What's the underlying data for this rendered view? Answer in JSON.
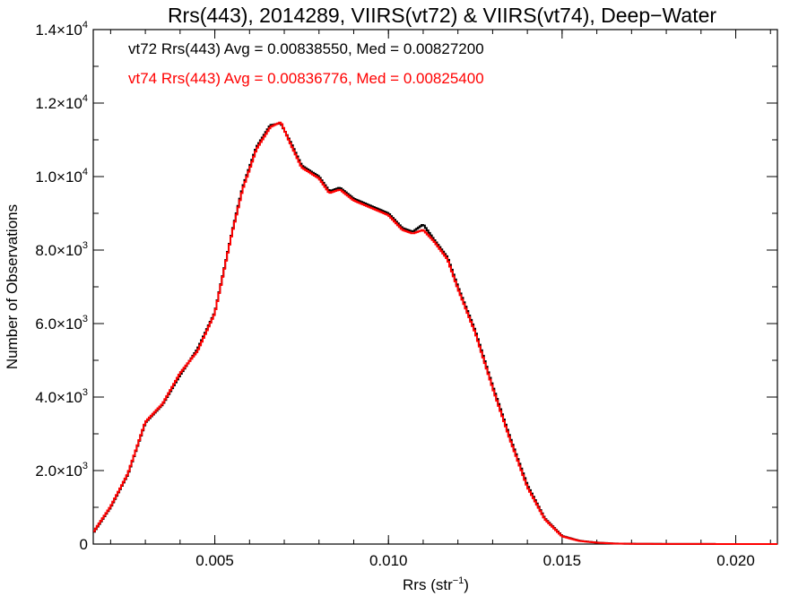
{
  "chart_data": {
    "type": "line",
    "step": true,
    "title": "Rrs(443), 2014289, VIIRS(vt72) & VIIRS(vt74), Deep−Water",
    "xlabel": "Rrs (str",
    "xlabel_sup": "−1",
    "xlabel_suffix": ")",
    "ylabel": "Number of Observations",
    "xlim": [
      0.0015,
      0.0212
    ],
    "ylim": [
      0,
      14000
    ],
    "x_ticks": [
      {
        "value": 0.005,
        "label": "0.005"
      },
      {
        "value": 0.01,
        "label": "0.010"
      },
      {
        "value": 0.015,
        "label": "0.015"
      },
      {
        "value": 0.02,
        "label": "0.020"
      }
    ],
    "y_ticks": [
      {
        "value": 0,
        "mant": "0",
        "exp": ""
      },
      {
        "value": 2000,
        "mant": "2.0×10",
        "exp": "3"
      },
      {
        "value": 4000,
        "mant": "4.0×10",
        "exp": "3"
      },
      {
        "value": 6000,
        "mant": "6.0×10",
        "exp": "3"
      },
      {
        "value": 8000,
        "mant": "8.0×10",
        "exp": "3"
      },
      {
        "value": 10000,
        "mant": "1.0×10",
        "exp": "4"
      },
      {
        "value": 12000,
        "mant": "1.2×10",
        "exp": "4"
      },
      {
        "value": 14000,
        "mant": "1.4×10",
        "exp": "4"
      }
    ],
    "x_minor_step": 0.001,
    "y_minor_step": 1000,
    "annotations": [
      {
        "text": "vt72 Rrs(443) Avg = 0.00838550, Med = 0.00827200",
        "color": "#000000"
      },
      {
        "text": "vt74 Rrs(443) Avg = 0.00836776, Med = 0.00825400",
        "color": "#ff0000"
      }
    ],
    "series": [
      {
        "color": "#000000",
        "x": [
          0.0015,
          0.002,
          0.0025,
          0.003,
          0.0035,
          0.004,
          0.0045,
          0.005,
          0.0055,
          0.0058,
          0.0062,
          0.0066,
          0.0069,
          0.0072,
          0.0075,
          0.008,
          0.0083,
          0.0086,
          0.009,
          0.0095,
          0.01,
          0.0104,
          0.0107,
          0.011,
          0.0113,
          0.0117,
          0.012,
          0.0125,
          0.013,
          0.0135,
          0.014,
          0.0145,
          0.015,
          0.0155,
          0.016,
          0.0165,
          0.017,
          0.018,
          0.019,
          0.02,
          0.0212
        ],
        "y": [
          300,
          1000,
          1900,
          3300,
          3800,
          4600,
          5300,
          6300,
          8500,
          9700,
          10800,
          11400,
          11450,
          10900,
          10300,
          10000,
          9600,
          9700,
          9400,
          9200,
          9000,
          8600,
          8500,
          8700,
          8300,
          7800,
          7000,
          5800,
          4300,
          2900,
          1600,
          700,
          220,
          90,
          40,
          15,
          8,
          4,
          2,
          1,
          0
        ]
      },
      {
        "color": "#ff0000",
        "x": [
          0.0015,
          0.002,
          0.0025,
          0.003,
          0.0035,
          0.004,
          0.0045,
          0.005,
          0.0055,
          0.0058,
          0.0062,
          0.0066,
          0.0069,
          0.0072,
          0.0075,
          0.008,
          0.0083,
          0.0086,
          0.009,
          0.0095,
          0.01,
          0.0104,
          0.0107,
          0.011,
          0.0113,
          0.0117,
          0.012,
          0.0125,
          0.013,
          0.0135,
          0.014,
          0.0145,
          0.015,
          0.0155,
          0.016,
          0.0165,
          0.017,
          0.018,
          0.019,
          0.02,
          0.0212
        ],
        "y": [
          320,
          1020,
          1920,
          3320,
          3820,
          4650,
          5250,
          6280,
          8480,
          9650,
          10750,
          11350,
          11480,
          10850,
          10250,
          9950,
          9550,
          9650,
          9350,
          9150,
          8950,
          8550,
          8450,
          8550,
          8250,
          7750,
          6950,
          5750,
          4250,
          2850,
          1550,
          680,
          210,
          85,
          38,
          14,
          7,
          3,
          2,
          1,
          0
        ]
      }
    ]
  }
}
